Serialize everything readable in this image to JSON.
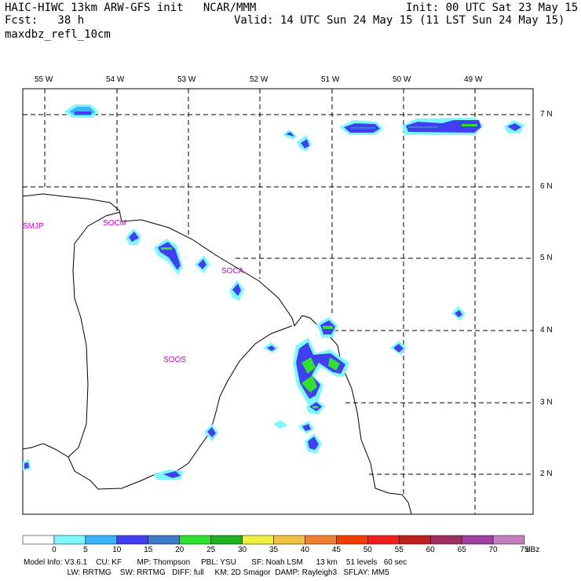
{
  "header": {
    "line1_left": "HAIC-HIWC 13km ARW-GFS init   NCAR/MMM",
    "line1_right": "Init: 00 UTC Sat 23 May 15",
    "line2_left": "Fcst:   38 h",
    "line2_right": "Valid: 14 UTC Sun 24 May 15 (11 LST Sun 24 May 15)",
    "field_name": "maxdbz_refl_10cm"
  },
  "map": {
    "lon_labels": [
      "55 W",
      "54 W",
      "53 W",
      "52 W",
      "51 W",
      "50 W",
      "49 W"
    ],
    "lat_labels": [
      "7 N",
      "6 N",
      "5 N",
      "4 N",
      "3 N",
      "2 N"
    ],
    "stations": [
      {
        "name": "SMJP"
      },
      {
        "name": "SOCM"
      },
      {
        "name": "SOCA"
      },
      {
        "name": "SOOS"
      }
    ]
  },
  "colorbar": {
    "unit": "dBz",
    "ticks": [
      "0",
      "5",
      "10",
      "15",
      "20",
      "25",
      "30",
      "35",
      "40",
      "45",
      "50",
      "55",
      "60",
      "65",
      "70",
      "75"
    ],
    "colors": [
      "#ffffff",
      "#7ef8ff",
      "#3ab4f8",
      "#4040f0",
      "#3c7cc8",
      "#30e030",
      "#20b020",
      "#f0f040",
      "#f0c040",
      "#f08030",
      "#f04000",
      "#f02020",
      "#c02020",
      "#a03060",
      "#a040a0",
      "#c080c0"
    ]
  },
  "footer": {
    "line1": "Model Info: V3.6.1    CU: KF       MP: Thompson     PBL: YSU       SF: Noah LSM      13 km    51 levels   60 sec",
    "line2": "                    LW: RRTMG    SW: RRTMG   DIFF: full     KM: 2D Smagor  DAMP: Rayleigh3   SFLAY: MM5"
  },
  "colors": {
    "light_cyan": "#7ef8ff",
    "sky_blue": "#3ab4f8",
    "blue": "#4040f0",
    "steel_blue": "#3c7cc8",
    "green": "#30e030",
    "station_magenta": "#cc00cc"
  }
}
